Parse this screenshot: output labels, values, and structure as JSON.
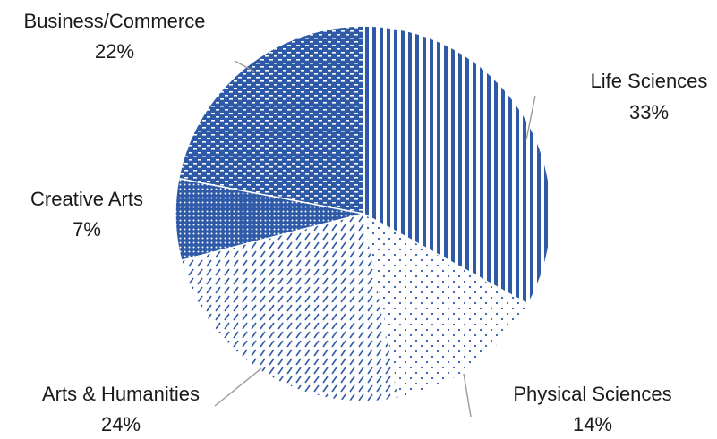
{
  "chart_data": {
    "type": "pie",
    "title": "",
    "start_angle_deg": 0,
    "direction": "clockwise",
    "slices": [
      {
        "label": "Life Sciences",
        "value": 33,
        "value_label": "33%",
        "pattern": "vertical-stripes",
        "color": "#2f5aa8"
      },
      {
        "label": "Physical Sciences",
        "value": 14,
        "value_label": "14%",
        "pattern": "sparse-dots",
        "color": "#2f5aa8"
      },
      {
        "label": "Arts & Humanities",
        "value": 24,
        "value_label": "24%",
        "pattern": "diagonal-dashes",
        "color": "#2f5aa8"
      },
      {
        "label": "Creative Arts",
        "value": 7,
        "value_label": "7%",
        "pattern": "dense-dots",
        "color": "#2f5aa8"
      },
      {
        "label": "Business/Commerce",
        "value": 22,
        "value_label": "22%",
        "pattern": "horizontal-dashes",
        "color": "#2f5aa8"
      }
    ],
    "legend": "none",
    "data_labels": "outside-with-leader-lines"
  }
}
